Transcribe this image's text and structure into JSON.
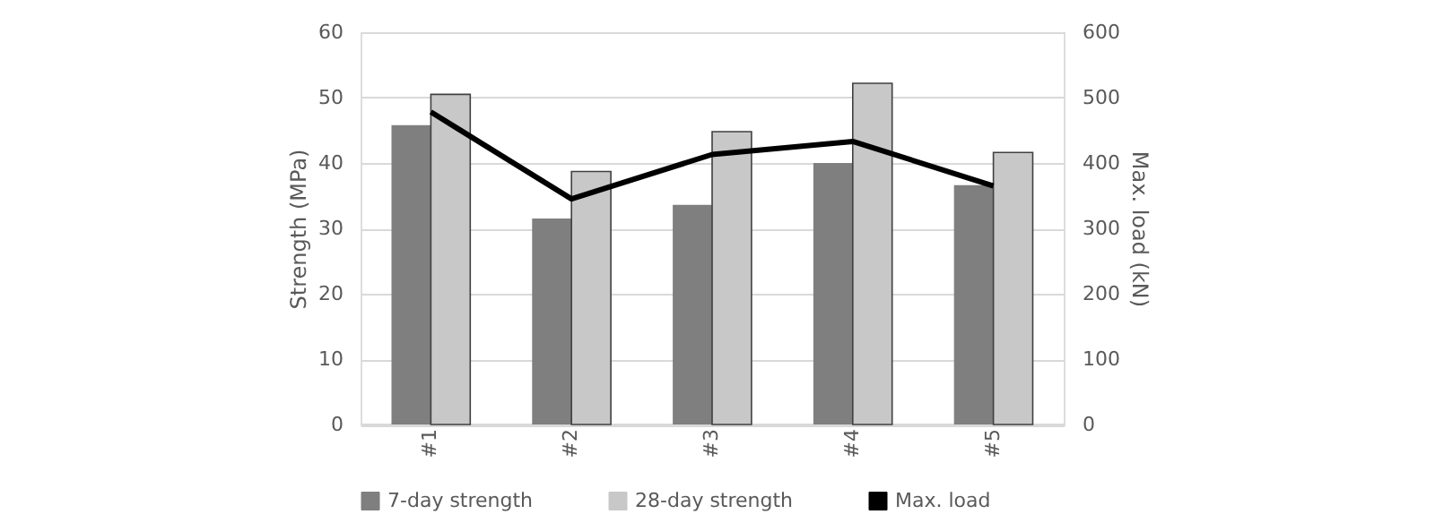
{
  "chart_data": {
    "type": "bar",
    "categories": [
      "#1",
      "#2",
      "#3",
      "#4",
      "#5"
    ],
    "ylabel": "Strength (MPa)",
    "y2label": "Max. load (kN)",
    "ylim": [
      0,
      60
    ],
    "yticks": [
      0,
      10,
      20,
      30,
      40,
      50,
      60
    ],
    "y2lim": [
      0,
      600
    ],
    "y2ticks": [
      0,
      100,
      200,
      300,
      400,
      500,
      600
    ],
    "grid": "y",
    "legend": "bottom",
    "series": [
      {
        "name": "7-day strength",
        "color": "#7f7f7f",
        "values": [
          45.8,
          31.5,
          33.6,
          40.0,
          36.6
        ]
      },
      {
        "name": "28-day strength",
        "color": "#c8c8c8",
        "values": [
          50.5,
          38.7,
          44.8,
          52.2,
          41.6
        ]
      },
      {
        "name": "Max. load",
        "type": "line",
        "axis": "y2",
        "color": "#000000",
        "values": [
          478,
          345,
          413,
          433,
          365
        ]
      }
    ]
  }
}
